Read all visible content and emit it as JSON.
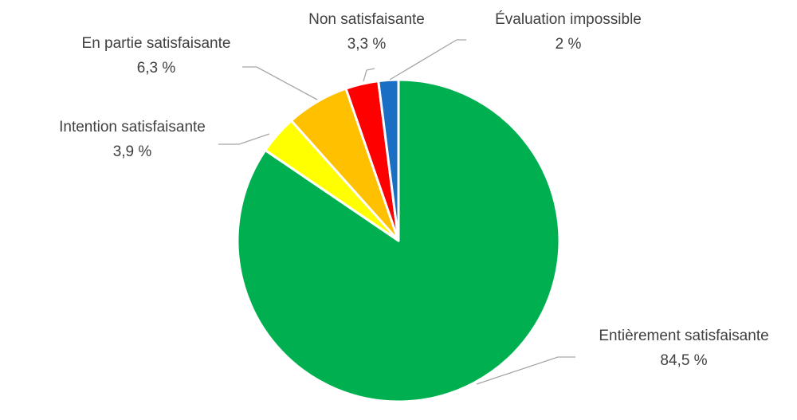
{
  "chart_data": {
    "type": "pie",
    "start_angle_deg": 0,
    "direction": "clockwise",
    "slices": [
      {
        "label": "Entièrement satisfaisante",
        "value": 84.5,
        "value_text": "84,5 %",
        "color": "#00b050"
      },
      {
        "label": "Intention satisfaisante",
        "value": 3.9,
        "value_text": "3,9 %",
        "color": "#ffff00"
      },
      {
        "label": "En partie satisfaisante",
        "value": 6.3,
        "value_text": "6,3 %",
        "color": "#ffc000"
      },
      {
        "label": "Non satisfaisante",
        "value": 3.3,
        "value_text": "3,3 %",
        "color": "#ff0000"
      },
      {
        "label": "Évaluation impossible",
        "value": 2,
        "value_text": "2 %",
        "color": "#1a6fc4"
      }
    ],
    "legend": "none",
    "label_style": "outside with leader lines"
  }
}
